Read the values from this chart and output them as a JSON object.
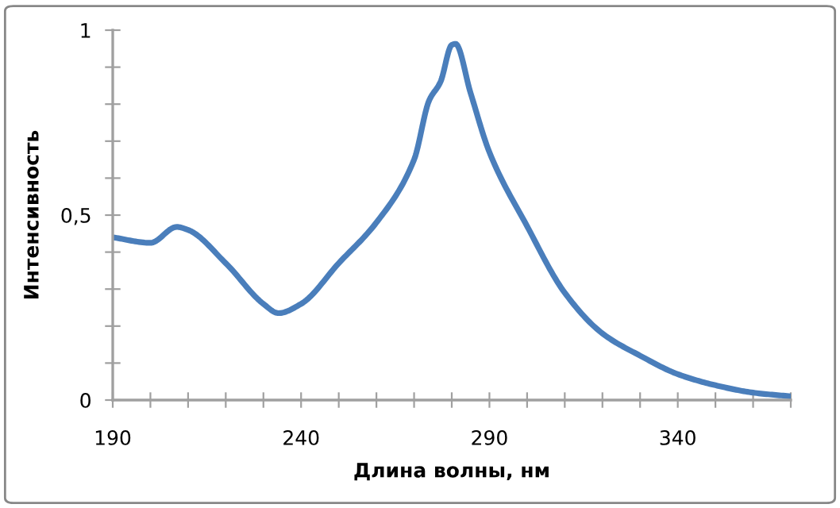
{
  "chart_data": {
    "type": "line",
    "xlabel": "Длина волны, нм",
    "ylabel": "Интенсивность",
    "x": [
      190,
      200,
      207,
      210,
      220,
      230,
      234,
      240,
      250,
      260,
      270,
      274,
      277,
      280,
      281,
      285,
      290,
      300,
      310,
      320,
      330,
      340,
      350,
      360,
      370
    ],
    "series": [
      {
        "color": "#4a7ebb",
        "values": [
          0.44,
          0.425,
          0.468,
          0.46,
          0.37,
          0.26,
          0.235,
          0.26,
          0.37,
          0.48,
          0.65,
          0.81,
          0.86,
          0.96,
          0.963,
          0.83,
          0.67,
          0.47,
          0.29,
          0.18,
          0.12,
          0.07,
          0.04,
          0.02,
          0.01
        ]
      }
    ],
    "xlim": [
      190,
      370
    ],
    "ylim": [
      0,
      1
    ],
    "xticks": [
      190,
      {
        "value": 200,
        "label": null
      },
      {
        "value": 210,
        "label": null
      },
      {
        "value": 220,
        "label": null
      },
      {
        "value": 230,
        "label": null
      },
      240,
      {
        "value": 250,
        "label": null
      },
      {
        "value": 260,
        "label": null
      },
      {
        "value": 270,
        "label": null
      },
      {
        "value": 280,
        "label": null
      },
      290,
      {
        "value": 300,
        "label": null
      },
      {
        "value": 310,
        "label": null
      },
      {
        "value": 320,
        "label": null
      },
      {
        "value": 330,
        "label": null
      },
      340,
      {
        "value": 350,
        "label": null
      },
      {
        "value": 360,
        "label": null
      },
      {
        "value": 370,
        "label": null
      }
    ],
    "yticks": [
      0,
      {
        "value": 0.1,
        "label": null
      },
      {
        "value": 0.2,
        "label": null
      },
      {
        "value": 0.3,
        "label": null
      },
      {
        "value": 0.4,
        "label": null
      },
      {
        "value": 0.5,
        "label": "0,5"
      },
      {
        "value": 0.6,
        "label": null
      },
      {
        "value": 0.7,
        "label": null
      },
      {
        "value": 0.8,
        "label": null
      },
      {
        "value": 0.9,
        "label": null
      },
      1
    ],
    "grid": false,
    "marker": "none",
    "line_style": "solid"
  }
}
